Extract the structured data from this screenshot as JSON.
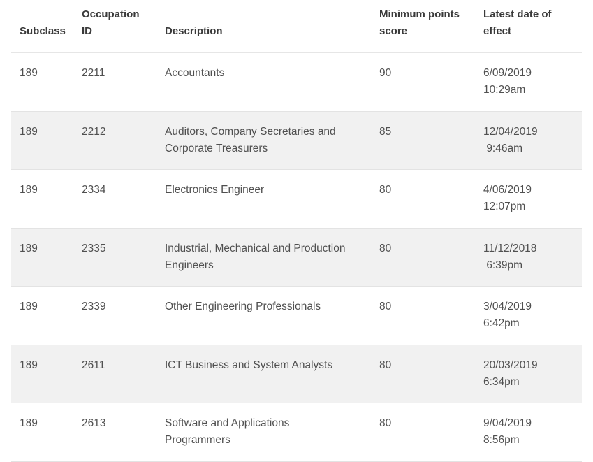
{
  "table": {
    "headers": {
      "subclass": "Subclass",
      "occupation_id": "Occupation\nID",
      "description": "Description",
      "min_points": "Minimum points\nscore",
      "latest_date": "Latest date of\neffect"
    },
    "rows": [
      {
        "subclass": "189",
        "occupation_id": "2211",
        "description": "Accountants",
        "min_points": "90",
        "latest_date": "6/09/2019\n10:29am"
      },
      {
        "subclass": "189",
        "occupation_id": "2212",
        "description": "Auditors, Company Secretaries and\nCorporate Treasurers",
        "min_points": "85",
        "latest_date": "12/04/2019\n 9:46am"
      },
      {
        "subclass": "189",
        "occupation_id": "2334",
        "description": "Electronics Engineer",
        "min_points": "80",
        "latest_date": "4/06/2019\n12:07pm"
      },
      {
        "subclass": "189",
        "occupation_id": "2335",
        "description": "Industrial, Mechanical and Production\nEngineers",
        "min_points": "80",
        "latest_date": "11/12/2018\n 6:39pm"
      },
      {
        "subclass": "189",
        "occupation_id": "2339",
        "description": "Other Engineering Professionals",
        "min_points": "80",
        "latest_date": "3/04/2019\n6:42pm"
      },
      {
        "subclass": "189",
        "occupation_id": "2611",
        "description": "ICT Business and System Analysts",
        "min_points": "80",
        "latest_date": "20/03/2019\n6:34pm"
      },
      {
        "subclass": "189",
        "occupation_id": "2613",
        "description": "Software and Applications\nProgrammers",
        "min_points": "80",
        "latest_date": "9/04/2019\n8:56pm"
      }
    ]
  }
}
